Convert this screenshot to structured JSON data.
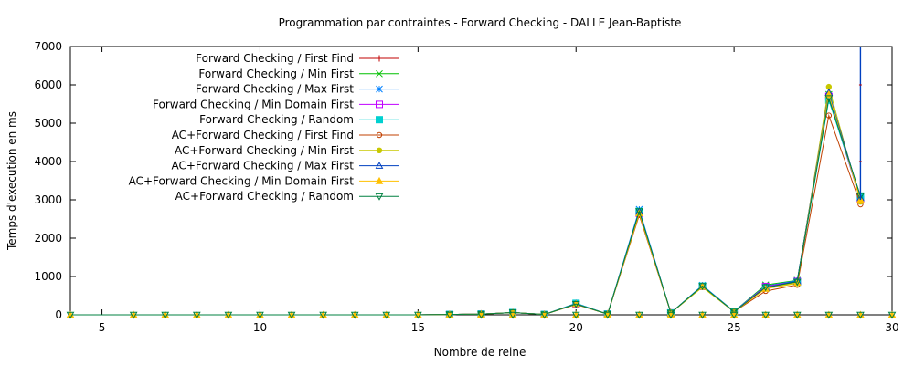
{
  "chart_data": {
    "type": "line",
    "title": "Programmation par contraintes - Forward Checking - DALLE Jean-Baptiste",
    "xlabel": "Nombre de reine",
    "ylabel": "Temps d'execution en ms",
    "xlim": [
      4,
      30
    ],
    "ylim": [
      0,
      7000
    ],
    "xticks": [
      5,
      10,
      15,
      20,
      25,
      30
    ],
    "yticks": [
      0,
      1000,
      2000,
      3000,
      4000,
      5000,
      6000,
      7000
    ],
    "legend_position": "top-left",
    "grid": false,
    "x": [
      4,
      5,
      6,
      7,
      8,
      9,
      10,
      11,
      12,
      13,
      14,
      15,
      16,
      17,
      18,
      19,
      20,
      21,
      22,
      23,
      24,
      25,
      26,
      27,
      28,
      29
    ],
    "series": [
      {
        "name": "Forward Checking / First Find",
        "color": "#c00000",
        "marker": "plus",
        "values": [
          0,
          0,
          0,
          0,
          0,
          0,
          0,
          0,
          0,
          0,
          0,
          0,
          10,
          20,
          60,
          10,
          280,
          20,
          2700,
          50,
          750,
          80,
          750,
          880,
          5700,
          3000
        ]
      },
      {
        "name": "Forward Checking / Min First",
        "color": "#00c000",
        "marker": "cross",
        "values": [
          0,
          0,
          0,
          0,
          0,
          0,
          0,
          0,
          0,
          0,
          0,
          0,
          10,
          20,
          60,
          10,
          290,
          20,
          2680,
          50,
          760,
          90,
          780,
          900,
          5750,
          3050
        ]
      },
      {
        "name": "Forward Checking / Max First",
        "color": "#0080ff",
        "marker": "star",
        "values": [
          0,
          0,
          0,
          0,
          0,
          0,
          0,
          0,
          0,
          0,
          0,
          0,
          10,
          20,
          60,
          10,
          300,
          20,
          2750,
          50,
          770,
          90,
          750,
          890,
          5650,
          3000
        ]
      },
      {
        "name": "Forward Checking / Min Domain First",
        "color": "#c000ff",
        "marker": "open-square",
        "values": [
          0,
          0,
          0,
          0,
          0,
          0,
          0,
          0,
          0,
          0,
          0,
          0,
          10,
          20,
          60,
          10,
          280,
          20,
          2650,
          50,
          740,
          80,
          740,
          870,
          5700,
          3000
        ]
      },
      {
        "name": "Forward Checking / Random",
        "color": "#00d0d0",
        "marker": "filled-square",
        "values": [
          0,
          0,
          0,
          0,
          0,
          0,
          0,
          0,
          0,
          0,
          0,
          0,
          10,
          20,
          60,
          10,
          300,
          20,
          2700,
          50,
          750,
          80,
          700,
          850,
          5600,
          3100
        ]
      },
      {
        "name": "AC+Forward Checking / First Find",
        "color": "#c04000",
        "marker": "open-circle",
        "values": [
          0,
          0,
          0,
          0,
          0,
          0,
          0,
          0,
          0,
          0,
          0,
          0,
          10,
          20,
          60,
          10,
          270,
          20,
          2600,
          50,
          730,
          80,
          620,
          780,
          5200,
          2880
        ]
      },
      {
        "name": "AC+Forward Checking / Min First",
        "color": "#c8c800",
        "marker": "filled-circle",
        "values": [
          0,
          0,
          0,
          0,
          0,
          0,
          0,
          0,
          0,
          0,
          0,
          0,
          10,
          20,
          60,
          10,
          280,
          20,
          2650,
          50,
          720,
          80,
          680,
          820,
          5950,
          2950
        ]
      },
      {
        "name": "AC+Forward Checking / Max First",
        "color": "#0040c0",
        "marker": "open-triangle",
        "values": [
          0,
          0,
          0,
          0,
          0,
          0,
          0,
          0,
          0,
          0,
          0,
          0,
          10,
          20,
          60,
          10,
          290,
          20,
          2700,
          50,
          750,
          80,
          700,
          880,
          5800,
          3050
        ]
      },
      {
        "name": "AC+Forward Checking / Min Domain First",
        "color": "#ffc000",
        "marker": "filled-triangle",
        "values": [
          0,
          0,
          0,
          0,
          0,
          0,
          0,
          0,
          0,
          0,
          0,
          0,
          10,
          20,
          60,
          10,
          280,
          20,
          2650,
          50,
          740,
          80,
          680,
          840,
          5750,
          3000
        ]
      },
      {
        "name": "AC+Forward Checking / Random",
        "color": "#008040",
        "marker": "open-triangle-down",
        "values": [
          0,
          0,
          0,
          0,
          0,
          0,
          0,
          0,
          0,
          0,
          0,
          0,
          10,
          20,
          60,
          10,
          280,
          20,
          2700,
          50,
          750,
          80,
          720,
          860,
          5650,
          3100
        ]
      }
    ],
    "spike": {
      "x": 29,
      "values": [
        3000,
        4000,
        6000,
        7000
      ]
    },
    "bottom_markers_x": [
      4,
      6,
      7,
      8,
      9,
      10,
      11,
      12,
      13,
      14,
      15,
      16,
      17,
      18,
      19,
      20,
      21,
      22,
      23,
      24,
      25,
      26,
      27,
      28,
      29,
      30
    ]
  }
}
